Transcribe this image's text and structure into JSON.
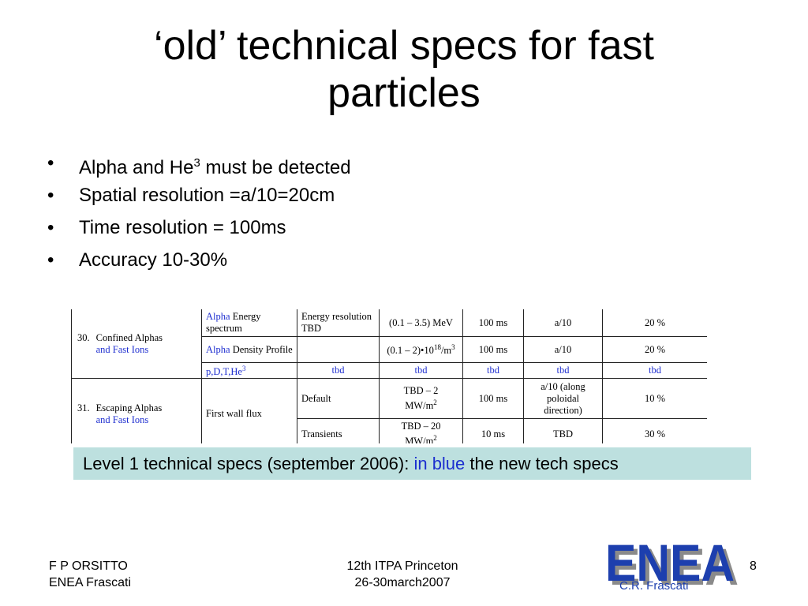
{
  "slide": {
    "title_line1": "‘old’ technical specs for fast",
    "title_line2": "particles",
    "bullets": [
      {
        "text": "Alpha and He",
        "sup": "3",
        "text_after": " must be detected"
      },
      {
        "text": "Spatial resolution =a/10=20cm"
      },
      {
        "text": "Time resolution = 100ms"
      },
      {
        "text": "Accuracy 10-30%"
      }
    ],
    "bullet_glyph": "•"
  },
  "table": {
    "rows": [
      {
        "num": "30.",
        "name": "Confined Alphas",
        "name_blue": "and Fast Ions",
        "sub": [
          {
            "param_blue": "Alpha",
            "param": " Energy spectrum",
            "condition": "Energy resolution TBD",
            "range": "(0.1 – 3.5) MeV",
            "time": "100 ms",
            "space": "a/10",
            "accuracy": "20 %"
          },
          {
            "param_blue": "Alpha",
            "param": " Density Profile",
            "condition": "",
            "range_pre": "(0.1 – 2)•10",
            "range_sup": "18",
            "range_post": "/m",
            "range_sup2": "3",
            "time": "100 ms",
            "space": "a/10",
            "accuracy": "20 %"
          },
          {
            "param_blue_full": "p,D,T,He",
            "param_blue_sup": "3",
            "condition": "tbd",
            "range": "tbd",
            "time": "tbd",
            "space": "tbd",
            "accuracy": "tbd"
          }
        ]
      },
      {
        "num": "31.",
        "name": "Escaping Alphas",
        "name_blue": "and Fast Ions",
        "param": "First wall flux",
        "sub": [
          {
            "condition": "Default",
            "range_line1": "TBD – 2",
            "range_line2": "MW/m",
            "range_sup": "2",
            "time": "100 ms",
            "space": "a/10   (along poloidal direction)",
            "accuracy": "10 %"
          },
          {
            "condition": "Transients",
            "range_line1": "TBD – 20",
            "range_line2": "MW/m",
            "range_sup": "2",
            "time": "10 ms",
            "space": "TBD",
            "accuracy": "30 %"
          }
        ]
      }
    ]
  },
  "caption": {
    "text_before": "Level 1  technical specs (september 2006): ",
    "text_blue": "in blue",
    "text_after": " the new tech specs"
  },
  "footer": {
    "author_line1": "F P ORSITTO",
    "author_line2": "ENEA Frascati",
    "event_line1": "12th ITPA Princeton",
    "event_line2": "26-30march2007",
    "page_number": "8"
  },
  "logo": {
    "text": "ENEA",
    "subtitle": "C.R. Frascati"
  },
  "colors": {
    "caption_bg": "#bde0df",
    "blue_text": "#1c2fcf",
    "logo_blue": "#1d3fae"
  }
}
